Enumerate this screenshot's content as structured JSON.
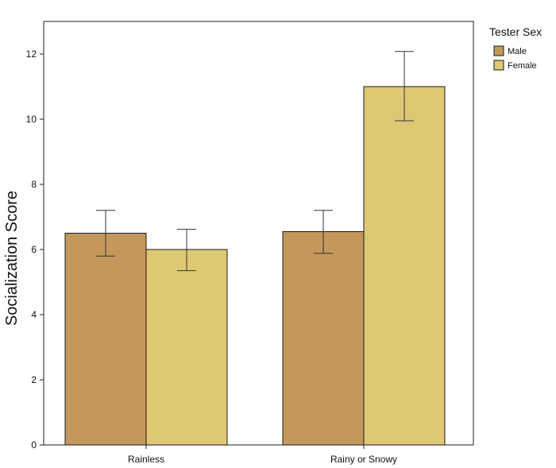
{
  "chart_data": {
    "type": "bar",
    "title": "",
    "xlabel": "",
    "ylabel": "Socialization Score",
    "ylim": [
      0,
      13
    ],
    "yticks": [
      0,
      2,
      4,
      6,
      8,
      10,
      12
    ],
    "grid": false,
    "categories": [
      "Rainless",
      "Rainy or Snowy"
    ],
    "series": [
      {
        "name": "Male",
        "color": "#c4975a",
        "values": [
          6.5,
          6.55
        ],
        "error_low": [
          5.8,
          5.88
        ],
        "error_high": [
          7.2,
          7.2
        ]
      },
      {
        "name": "Female",
        "color": "#dfc874",
        "values": [
          6.0,
          11.0
        ],
        "error_low": [
          5.35,
          9.95
        ],
        "error_high": [
          6.62,
          12.08
        ]
      }
    ],
    "legend": {
      "title": "Tester Sex",
      "position": "top-right, outside plot"
    }
  }
}
